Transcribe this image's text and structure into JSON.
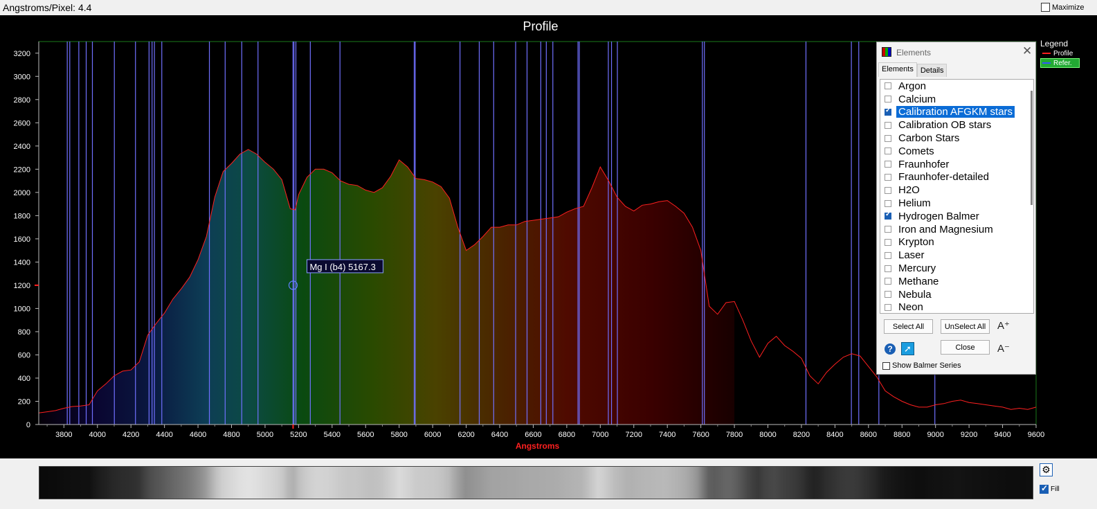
{
  "toolbar": {
    "angstrom_label": "Angstroms/Pixel:",
    "angstrom_value": "4.4",
    "maximize_label": "Maximize",
    "maximize_checked": false
  },
  "chart_data": {
    "type": "area",
    "title": "Profile",
    "xlabel": "Angstroms",
    "ylabel": "",
    "xlim": [
      3650,
      9600
    ],
    "ylim": [
      0,
      3300
    ],
    "x_ticks": [
      3800,
      4000,
      4200,
      4400,
      4600,
      4800,
      5000,
      5200,
      5400,
      5600,
      5800,
      6000,
      6200,
      6400,
      6600,
      6800,
      7000,
      7200,
      7400,
      7600,
      7800,
      8000,
      8200,
      8400,
      8600,
      8800,
      9000,
      9200,
      9400,
      9600
    ],
    "y_ticks": [
      0,
      200,
      400,
      600,
      800,
      1000,
      1200,
      1400,
      1600,
      1800,
      2000,
      2200,
      2400,
      2600,
      2800,
      3000,
      3200
    ],
    "series": [
      {
        "name": "Profile",
        "color": "#ff2020",
        "x": [
          3650,
          3700,
          3750,
          3800,
          3850,
          3900,
          3950,
          4000,
          4050,
          4100,
          4150,
          4200,
          4250,
          4300,
          4350,
          4400,
          4450,
          4500,
          4550,
          4600,
          4650,
          4700,
          4750,
          4800,
          4850,
          4900,
          4950,
          5000,
          5050,
          5100,
          5150,
          5180,
          5200,
          5250,
          5300,
          5350,
          5400,
          5450,
          5500,
          5550,
          5600,
          5650,
          5700,
          5750,
          5800,
          5850,
          5900,
          5950,
          6000,
          6050,
          6100,
          6150,
          6200,
          6250,
          6300,
          6350,
          6400,
          6450,
          6500,
          6550,
          6600,
          6650,
          6700,
          6750,
          6800,
          6850,
          6900,
          6950,
          7000,
          7050,
          7100,
          7150,
          7200,
          7250,
          7300,
          7350,
          7400,
          7450,
          7500,
          7550,
          7600,
          7650,
          7700,
          7750,
          7800,
          7850,
          7900,
          7950,
          8000,
          8050,
          8100,
          8150,
          8200,
          8250,
          8300,
          8350,
          8400,
          8450,
          8500,
          8550,
          8600,
          8650,
          8700,
          8750,
          8800,
          8850,
          8900,
          8950,
          9000,
          9050,
          9100,
          9150,
          9200,
          9250,
          9300,
          9350,
          9400,
          9450,
          9500,
          9550,
          9600
        ],
        "y": [
          100,
          110,
          120,
          140,
          155,
          160,
          170,
          290,
          350,
          420,
          460,
          470,
          540,
          770,
          870,
          960,
          1080,
          1170,
          1270,
          1420,
          1620,
          1960,
          2180,
          2250,
          2330,
          2370,
          2330,
          2260,
          2200,
          2110,
          1860,
          1850,
          1980,
          2130,
          2200,
          2200,
          2170,
          2100,
          2070,
          2060,
          2020,
          2000,
          2040,
          2140,
          2280,
          2220,
          2120,
          2110,
          2090,
          2050,
          1950,
          1700,
          1500,
          1550,
          1620,
          1700,
          1700,
          1720,
          1720,
          1750,
          1760,
          1770,
          1780,
          1790,
          1830,
          1860,
          1880,
          2040,
          2220,
          2100,
          1960,
          1880,
          1840,
          1890,
          1900,
          1920,
          1930,
          1880,
          1820,
          1700,
          1500,
          1020,
          950,
          1050,
          1060,
          900,
          720,
          580,
          700,
          760,
          680,
          630,
          570,
          420,
          350,
          450,
          520,
          580,
          610,
          590,
          500,
          410,
          290,
          240,
          200,
          170,
          150,
          150,
          170,
          180,
          200,
          210,
          190,
          180,
          170,
          160,
          150,
          130,
          140,
          130,
          150
        ]
      }
    ],
    "reference_lines_x": [
      3820,
      3835,
      3889,
      3933,
      3970,
      4101,
      4227,
      4308,
      4326,
      4340,
      4384,
      4668,
      4762,
      4861,
      4958,
      5167,
      5173,
      5184,
      5270,
      5447,
      5890,
      5896,
      6163,
      6278,
      6364,
      6495,
      6563,
      6645,
      6678,
      6717,
      6867,
      6875,
      7048,
      7067,
      7102,
      7609,
      7621,
      8227,
      8498,
      8542,
      8662,
      8996
    ],
    "annotation": {
      "label": "Mg I (b4)  5167.3",
      "x": 5167.3,
      "y": 1200
    },
    "legend": {
      "title": "Legend",
      "placement": "top-right",
      "items": [
        {
          "label": "Profile",
          "color": "#ff2020"
        },
        {
          "label": "Refer.",
          "color": "#3355ff"
        }
      ]
    },
    "grid": false
  },
  "dialog": {
    "title": "Elements",
    "tabs": [
      "Elements",
      "Details"
    ],
    "active_tab": "Elements",
    "elements": [
      {
        "label": "Argon",
        "checked": false,
        "selected": false
      },
      {
        "label": "Calcium",
        "checked": false,
        "selected": false
      },
      {
        "label": "Calibration AFGKM stars",
        "checked": true,
        "selected": true
      },
      {
        "label": "Calibration OB stars",
        "checked": false,
        "selected": false
      },
      {
        "label": "Carbon Stars",
        "checked": false,
        "selected": false
      },
      {
        "label": "Comets",
        "checked": false,
        "selected": false
      },
      {
        "label": "Fraunhofer",
        "checked": false,
        "selected": false
      },
      {
        "label": "Fraunhofer-detailed",
        "checked": false,
        "selected": false
      },
      {
        "label": "H2O",
        "checked": false,
        "selected": false
      },
      {
        "label": "Helium",
        "checked": false,
        "selected": false
      },
      {
        "label": "Hydrogen Balmer",
        "checked": true,
        "selected": false
      },
      {
        "label": "Iron and Magnesium",
        "checked": false,
        "selected": false
      },
      {
        "label": "Krypton",
        "checked": false,
        "selected": false
      },
      {
        "label": "Laser",
        "checked": false,
        "selected": false
      },
      {
        "label": "Mercury",
        "checked": false,
        "selected": false
      },
      {
        "label": "Methane",
        "checked": false,
        "selected": false
      },
      {
        "label": "Nebula",
        "checked": false,
        "selected": false
      },
      {
        "label": "Neon",
        "checked": false,
        "selected": false
      }
    ],
    "select_all_label": "Select All",
    "unselect_all_label": "UnSelect All",
    "close_label": "Close",
    "font_up_label": "A⁺",
    "font_down_label": "A⁻",
    "help_icon": "?",
    "show_balmer_label": "Show Balmer Series",
    "show_balmer_checked": false
  },
  "bottom": {
    "fill_label": "Fill",
    "fill_checked": true
  }
}
